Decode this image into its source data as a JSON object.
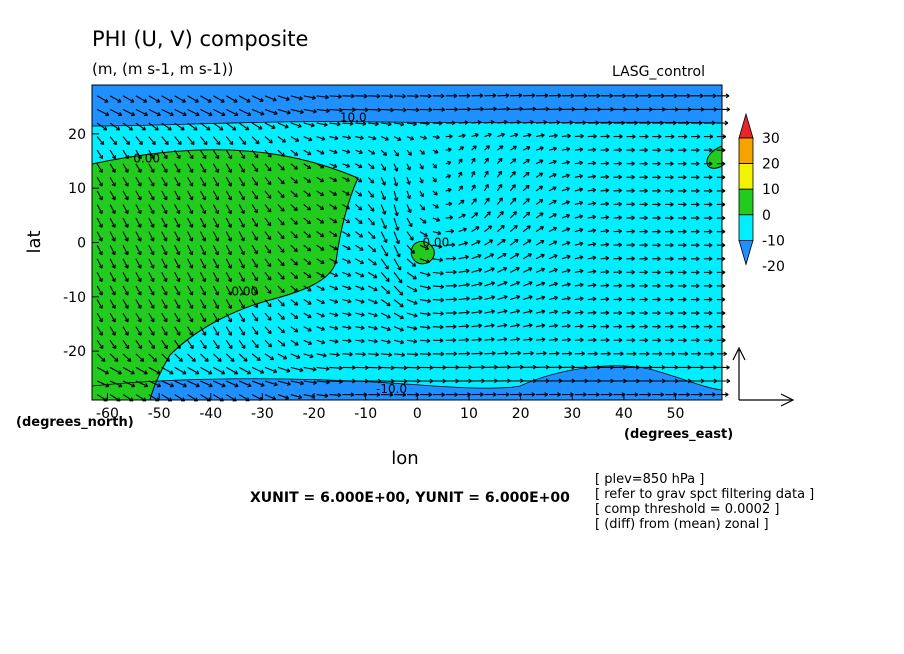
{
  "chart_data": {
    "type": "heatmap",
    "title": "PHI (U, V) composite",
    "subtitle": "(m, (m s-1, m s-1))",
    "run_label": "LASG_control",
    "xlabel": "lon",
    "ylabel": "lat",
    "x_unit": "(degrees_east)",
    "y_unit": "(degrees_north)",
    "xlim": [
      -63,
      59
    ],
    "ylim": [
      -29,
      29
    ],
    "x_ticks": [
      -60,
      -50,
      -40,
      -30,
      -20,
      -10,
      0,
      10,
      20,
      30,
      40,
      50
    ],
    "y_ticks": [
      -20,
      -10,
      0,
      10,
      20
    ],
    "x_tick_labels": [
      "-60",
      "-50",
      "-40",
      "-30",
      "-20",
      "-10",
      "0",
      "10",
      "20",
      "30",
      "40",
      "50"
    ],
    "y_tick_labels": [
      "-20",
      "-10",
      "0",
      "10",
      "20"
    ],
    "field": "PHI",
    "vector_field": [
      "U",
      "V"
    ],
    "contour_labels": [
      {
        "text": "10.0",
        "lon": -15,
        "lat": 23
      },
      {
        "text": "0.00",
        "lon": -55,
        "lat": 15.5
      },
      {
        "text": "0.00",
        "lon": -36,
        "lat": -9
      },
      {
        "text": "0.00",
        "lon": 1,
        "lat": 0
      },
      {
        "text": "-10.0",
        "lon": -8,
        "lat": -27
      }
    ],
    "color_levels": [
      {
        "label": "30",
        "color": "#e8252a"
      },
      {
        "label": "20",
        "color": "#f6a200"
      },
      {
        "label": "10",
        "color": "#f2f203"
      },
      {
        "label": "0",
        "color": "#22cc1e"
      },
      {
        "label": "-10",
        "color": "#00eefe"
      },
      {
        "label": "-20",
        "color": "#1e90ff"
      }
    ],
    "colorbar_tick_labels": [
      "30",
      "20",
      "10",
      "0",
      "-10",
      "-20"
    ],
    "regions": {
      "positive_west": "lon -63 to -10, lat -29 to 17",
      "positive_spot_center": "lon 0 to 5, lat -3 to 1",
      "positive_spot_east": "lon 57 to 59, lat 14 to 18",
      "negative_north_band": "lat 22 to 29",
      "negative_south_band": "lat -29 to -24",
      "negative_southeast_lobe": "lon 25 to 55, lat -29 to -22"
    },
    "reference_vector": {
      "u_unit": 6.0,
      "v_unit": 6.0
    },
    "footer_text": "XUNIT = 6.000E+00, YUNIT = 6.000E+00",
    "info_lines": [
      "[ plev=850 hPa ]",
      "[ refer to grav spct filtering data ]",
      "[ comp threshold = 0.0002 ]",
      "[ (diff) from (mean) zonal ]"
    ]
  }
}
